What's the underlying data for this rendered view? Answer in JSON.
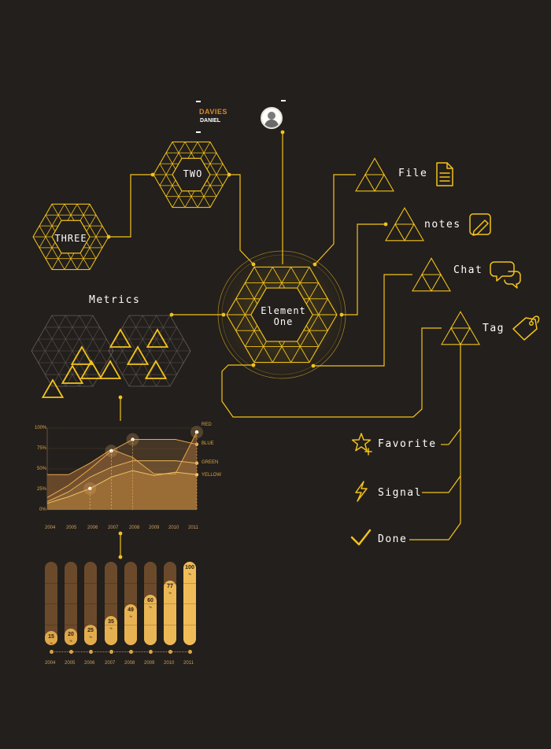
{
  "profile": {
    "last_name": "DAVIES",
    "first_name": "DANIEL"
  },
  "nodes": {
    "center": "Element One",
    "two": "TWO",
    "three": "THREE",
    "metrics": "Metrics"
  },
  "branches": [
    {
      "label": "File",
      "icon": "document-icon"
    },
    {
      "label": "notes",
      "icon": "pencil-note-icon"
    },
    {
      "label": "Chat",
      "icon": "chat-bubbles-icon"
    },
    {
      "label": "Tag",
      "icon": "tag-icon"
    }
  ],
  "actions": [
    {
      "label": "Favorite",
      "icon": "star-icon"
    },
    {
      "label": "Signal",
      "icon": "lightning-icon"
    },
    {
      "label": "Done",
      "icon": "checkmark-icon"
    }
  ],
  "colors": {
    "background": "#231f1c",
    "accent": "#f2c21b",
    "brown": "#6b4a2b",
    "gold": "#e9b252"
  },
  "chart_data": [
    {
      "type": "area",
      "x": [
        "2004",
        "2005",
        "2006",
        "2007",
        "2008",
        "2009",
        "2010",
        "2011"
      ],
      "y_ticks": [
        "0%",
        "25%",
        "50%",
        "75%",
        "100%"
      ],
      "ylim": [
        0,
        100
      ],
      "legend_position": "right",
      "series": [
        {
          "name": "RED",
          "values": [
            43,
            43,
            57,
            74,
            64,
            44,
            44,
            95
          ]
        },
        {
          "name": "BLUE",
          "values": [
            15,
            30,
            50,
            72,
            86,
            86,
            86,
            80
          ]
        },
        {
          "name": "GREEN",
          "values": [
            10,
            22,
            40,
            52,
            60,
            60,
            60,
            57
          ]
        },
        {
          "name": "YELLOW",
          "values": [
            8,
            16,
            26,
            40,
            48,
            42,
            46,
            43
          ]
        }
      ]
    },
    {
      "type": "bar",
      "categories": [
        "2004",
        "2005",
        "2006",
        "2007",
        "2008",
        "2009",
        "2010",
        "2011"
      ],
      "values": [
        15,
        20,
        25,
        35,
        49,
        60,
        77,
        100
      ],
      "unit": "%"
    }
  ]
}
